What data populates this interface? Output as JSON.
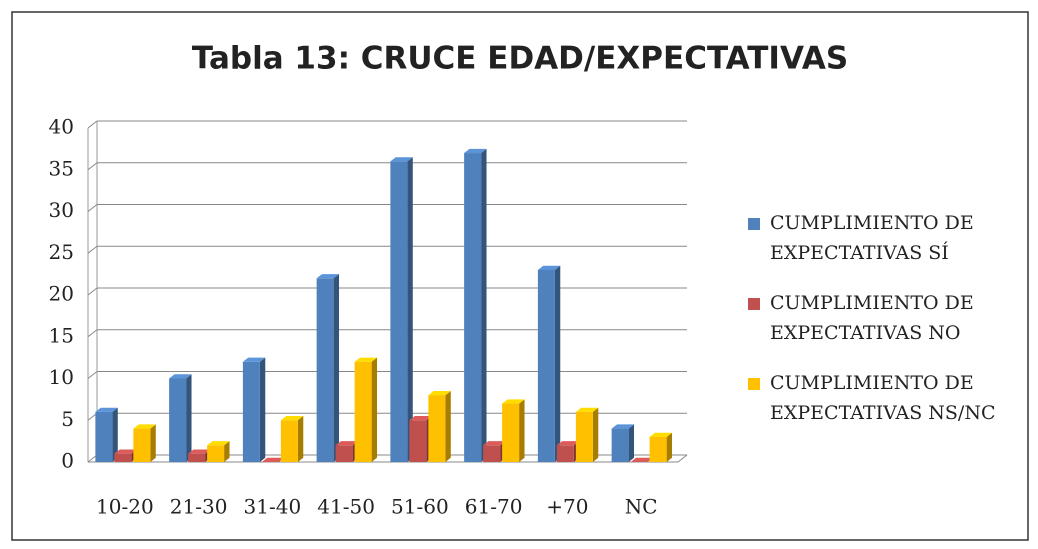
{
  "chart_data": {
    "type": "bar3d",
    "title": "Tabla 13: CRUCE EDAD/EXPECTATIVAS",
    "categories": [
      "10-20",
      "21-30",
      "31-40",
      "41-50",
      "51-60",
      "61-70",
      "+70",
      "NC"
    ],
    "series": [
      {
        "name": "CUMPLIMIENTO DE EXPECTATIVAS SÍ",
        "color": "#4f81bd",
        "values": [
          6,
          10,
          12,
          22,
          36,
          37,
          23,
          4
        ]
      },
      {
        "name": "CUMPLIMIENTO DE EXPECTATIVAS NO",
        "color": "#c0504d",
        "values": [
          1,
          1,
          0,
          2,
          5,
          2,
          2,
          0
        ]
      },
      {
        "name": "CUMPLIMIENTO DE EXPECTATIVAS NS/NC",
        "color": "#ffc000",
        "values": [
          4,
          2,
          5,
          12,
          8,
          7,
          6,
          3
        ]
      }
    ],
    "ylim": [
      0,
      40
    ],
    "yticks": [
      0,
      5,
      10,
      15,
      20,
      25,
      30,
      35,
      40
    ],
    "grid": true,
    "legend": "right"
  }
}
